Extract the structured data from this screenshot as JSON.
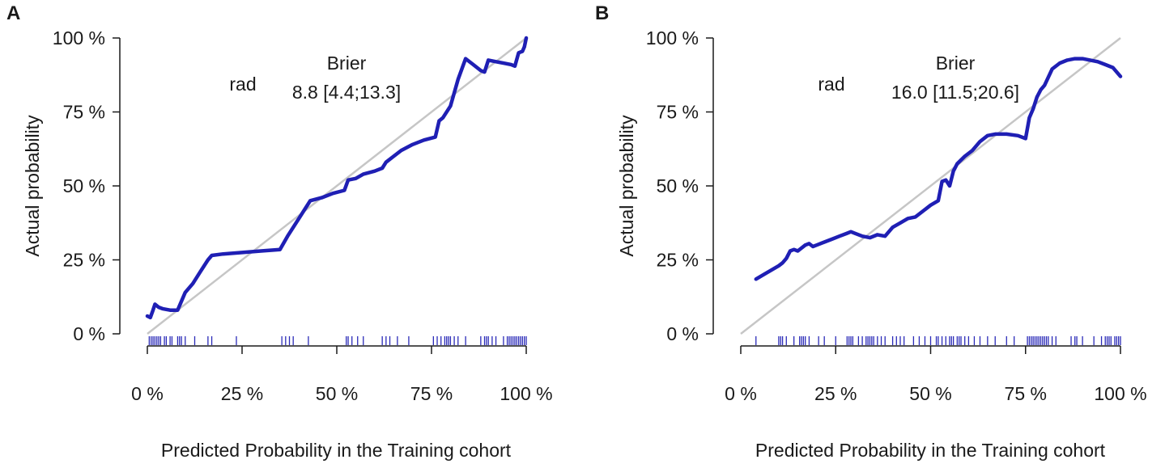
{
  "colors": {
    "curve": "#1f1fb4",
    "ideal": "#c6c6c6",
    "rug": "#2b2bb8",
    "axis": "#1a1a1a"
  },
  "chart_data": [
    {
      "panel": "A",
      "type": "line",
      "xlabel": "Predicted Probability in the Training cohort",
      "ylabel": "Actual probability",
      "xlim": [
        0,
        100
      ],
      "ylim": [
        0,
        100
      ],
      "x_ticks": [
        "0 %",
        "25 %",
        "50 %",
        "75 %",
        "100 %"
      ],
      "y_ticks": [
        "0 %",
        "25 %",
        "50 %",
        "75 %",
        "100 %"
      ],
      "grid": false,
      "annotation": {
        "model": "rad",
        "header": "Brier",
        "value": "8.8 [4.4;13.3]"
      },
      "ideal_line": {
        "x": [
          0,
          100
        ],
        "y": [
          0,
          100
        ]
      },
      "series": [
        {
          "name": "rad",
          "x": [
            0,
            0.8,
            1.5,
            2,
            3,
            4,
            6,
            8,
            10,
            12,
            14,
            16,
            17,
            20,
            25,
            30,
            35,
            37,
            40,
            43,
            46,
            49,
            52,
            53,
            55,
            57,
            60,
            62,
            63,
            65,
            67,
            70,
            73,
            76,
            77,
            78,
            80,
            82,
            84,
            86,
            88,
            89,
            90,
            92,
            94,
            96,
            97,
            98,
            99,
            99.5,
            100
          ],
          "y": [
            6,
            5.5,
            8,
            10,
            9,
            8.5,
            8,
            8,
            14,
            17,
            21,
            25,
            26.5,
            27,
            27.5,
            28,
            28.5,
            33,
            39,
            45,
            46,
            47.5,
            48.5,
            52,
            52.5,
            54,
            55,
            56,
            58,
            60,
            62,
            64,
            65.5,
            66.5,
            72,
            73,
            77,
            86,
            93,
            91,
            89,
            88.5,
            92.5,
            92,
            91.5,
            91,
            90.5,
            95,
            95.5,
            97,
            100
          ]
        }
      ],
      "rug": [
        0.5,
        1,
        1.5,
        2,
        2.5,
        3,
        3.5,
        4.5,
        5,
        6,
        6.5,
        8,
        8.5,
        9,
        10,
        12.5,
        16,
        17,
        23.5,
        35.5,
        36.5,
        37.5,
        38.5,
        42.5,
        52.5,
        53,
        54,
        55.5,
        57,
        62,
        63,
        64,
        66,
        69,
        75.5,
        76.5,
        77.5,
        78.5,
        79,
        79.5,
        80,
        81,
        82,
        84,
        88,
        89,
        89.5,
        90,
        91,
        92,
        94,
        95,
        95.5,
        96,
        96.5,
        97,
        97.5,
        98,
        98.5,
        99,
        99.5,
        100
      ]
    },
    {
      "panel": "B",
      "type": "line",
      "xlabel": "Predicted Probability in the Training cohort",
      "ylabel": "Actual probability",
      "xlim": [
        0,
        100
      ],
      "ylim": [
        0,
        100
      ],
      "x_ticks": [
        "0 %",
        "25 %",
        "50 %",
        "75 %",
        "100 %"
      ],
      "y_ticks": [
        "0 %",
        "25 %",
        "50 %",
        "75 %",
        "100 %"
      ],
      "grid": false,
      "annotation": {
        "model": "rad",
        "header": "Brier",
        "value": "16.0 [11.5;20.6]"
      },
      "ideal_line": {
        "x": [
          0,
          100
        ],
        "y": [
          0,
          100
        ]
      },
      "series": [
        {
          "name": "rad",
          "x": [
            4,
            6,
            8,
            10,
            11,
            12,
            13,
            14,
            15,
            16,
            17,
            18,
            19,
            20,
            22,
            24,
            26,
            28,
            29,
            30,
            32,
            34,
            36,
            38,
            40,
            42,
            44,
            46,
            48,
            50,
            52,
            53,
            54,
            55,
            56,
            57,
            59,
            61,
            63,
            65,
            67,
            70,
            73,
            75,
            76,
            77,
            78,
            79,
            80,
            82,
            84,
            86,
            88,
            90,
            92,
            94,
            96,
            98,
            99,
            100
          ],
          "y": [
            18.5,
            20,
            21.5,
            23,
            24,
            25.5,
            28,
            28.5,
            28,
            29,
            30,
            30.5,
            29.5,
            30,
            31,
            32,
            33,
            34,
            34.5,
            34,
            33,
            32.5,
            33.5,
            33,
            36,
            37.5,
            39,
            39.5,
            41.5,
            43.5,
            45,
            51.5,
            52,
            50,
            55,
            57.5,
            60,
            62,
            65,
            67,
            67.5,
            67.5,
            67,
            66,
            73,
            76,
            80,
            82.5,
            84,
            89.5,
            91.5,
            92.5,
            93,
            93,
            92.5,
            92,
            91,
            90,
            88.5,
            87
          ]
        }
      ],
      "rug": [
        4,
        10,
        10.5,
        11,
        12,
        14,
        15.5,
        16,
        16.5,
        17,
        18,
        20.5,
        22,
        25,
        28,
        28.5,
        29,
        29.5,
        31,
        32,
        33,
        33.5,
        34,
        34.5,
        35,
        36,
        37,
        38,
        40,
        41,
        42,
        43,
        45.5,
        47,
        48.5,
        50,
        51.5,
        52,
        53,
        54,
        55,
        55.5,
        56,
        57,
        57.5,
        58,
        59,
        60,
        61.5,
        63,
        65,
        67,
        70,
        72,
        75.5,
        76,
        76.5,
        77,
        77.5,
        78,
        78.5,
        79,
        79.5,
        80,
        80.5,
        81,
        82,
        83,
        87,
        88,
        88.5,
        90,
        93,
        95,
        96,
        96.5,
        97,
        97.5,
        98.5,
        99,
        99.5,
        100
      ]
    }
  ]
}
